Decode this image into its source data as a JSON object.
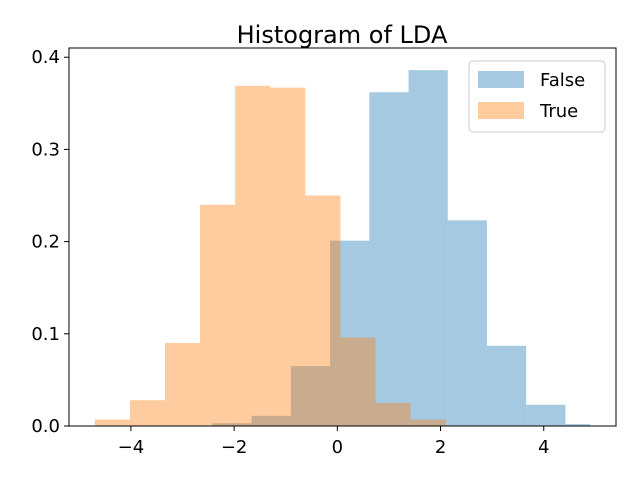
{
  "chart_data": {
    "type": "bar",
    "title": "Histogram of LDA",
    "xlabel": "",
    "ylabel": "",
    "xlim": [
      -5.2,
      5.4
    ],
    "ylim": [
      0,
      0.41
    ],
    "xticks": [
      -4,
      -2,
      0,
      2,
      4
    ],
    "xtick_labels": [
      "−4",
      "−2",
      "0",
      "2",
      "4"
    ],
    "yticks": [
      0.0,
      0.1,
      0.2,
      0.3,
      0.4
    ],
    "ytick_labels": [
      "0.0",
      "0.1",
      "0.2",
      "0.3",
      "0.4"
    ],
    "grid": false,
    "legend_position": "top-right",
    "series": [
      {
        "name": "False",
        "color": "#1f77b4",
        "alpha": 0.4,
        "bin_edges": [
          -2.42,
          -1.66,
          -0.9,
          -0.14,
          0.62,
          1.38,
          2.14,
          2.9,
          3.66,
          4.42,
          4.9
        ],
        "values": [
          0.003,
          0.011,
          0.065,
          0.201,
          0.362,
          0.386,
          0.223,
          0.087,
          0.023,
          0.002
        ]
      },
      {
        "name": "True",
        "color": "#ff7f0e",
        "alpha": 0.4,
        "bin_edges": [
          -4.7,
          -4.02,
          -3.34,
          -2.66,
          -1.98,
          -1.3,
          -0.62,
          0.06,
          0.74,
          1.42,
          2.1
        ],
        "values": [
          0.007,
          0.028,
          0.09,
          0.24,
          0.369,
          0.367,
          0.25,
          0.096,
          0.025,
          0.007
        ]
      }
    ]
  }
}
